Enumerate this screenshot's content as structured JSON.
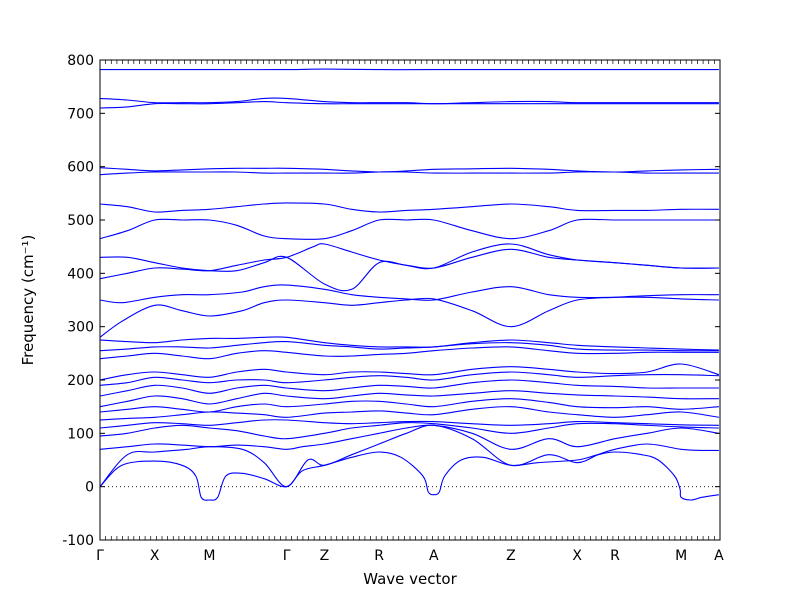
{
  "chart_data": {
    "type": "line",
    "title": "",
    "xlabel": "Wave vector",
    "ylabel": "Frequency (cm⁻¹)",
    "ylim": [
      -100,
      800
    ],
    "yticks": [
      -100,
      0,
      100,
      200,
      300,
      400,
      500,
      600,
      700,
      800
    ],
    "xlim": [
      0,
      11.33
    ],
    "xticks": [
      {
        "label": "Γ",
        "x": 0
      },
      {
        "label": "X",
        "x": 1.0
      },
      {
        "label": "M",
        "x": 2.0
      },
      {
        "label": "Γ",
        "x": 3.41
      },
      {
        "label": "Z",
        "x": 4.1
      },
      {
        "label": "R",
        "x": 5.1
      },
      {
        "label": "A",
        "x": 6.1
      },
      {
        "label": "Z",
        "x": 7.51
      },
      {
        "label": "X",
        "x": 8.72
      },
      {
        "label": "R",
        "x": 9.41
      },
      {
        "label": "M",
        "x": 10.62
      },
      {
        "label": "A",
        "x": 11.31
      }
    ],
    "zero_line": 0,
    "line_color": "#0000ff",
    "series": [
      {
        "x": [
          0,
          0.4,
          1.0,
          1.5,
          1.75,
          1.85,
          2.0,
          2.15,
          2.3,
          2.6,
          3.0,
          3.41,
          3.7,
          4.1,
          4.6,
          5.1,
          5.5,
          5.9,
          6.0,
          6.1,
          6.2,
          6.3,
          6.6,
          7.0,
          7.51,
          8.0,
          8.72,
          9.1,
          9.41,
          9.9,
          10.2,
          10.5,
          10.6,
          10.62,
          10.8,
          11.0,
          11.31
        ],
        "y": [
          0,
          40,
          48,
          40,
          20,
          -20,
          -25,
          -20,
          20,
          25,
          15,
          0,
          30,
          40,
          55,
          65,
          55,
          20,
          -10,
          -15,
          -10,
          20,
          50,
          55,
          40,
          45,
          50,
          60,
          65,
          60,
          50,
          20,
          -5,
          -20,
          -25,
          -20,
          -15
        ]
      },
      {
        "x": [
          0,
          0.5,
          1.0,
          1.6,
          2.0,
          2.6,
          3.0,
          3.41,
          3.8,
          4.1,
          4.6,
          5.1,
          5.6,
          6.1,
          6.8,
          7.51,
          8.2,
          8.72,
          9.1,
          9.41,
          10.0,
          10.62,
          11.0,
          11.31
        ],
        "y": [
          0,
          60,
          65,
          70,
          75,
          70,
          45,
          0,
          50,
          40,
          60,
          80,
          100,
          115,
          90,
          40,
          60,
          45,
          60,
          70,
          80,
          70,
          68,
          68
        ]
      },
      {
        "x": [
          0,
          0.5,
          1.0,
          1.5,
          2.0,
          2.5,
          3.0,
          3.41,
          3.7,
          4.1,
          4.6,
          5.1,
          5.6,
          6.1,
          6.8,
          7.51,
          8.2,
          8.72,
          9.41,
          10.0,
          10.62,
          11.31
        ],
        "y": [
          70,
          75,
          80,
          78,
          75,
          78,
          75,
          70,
          75,
          80,
          90,
          100,
          110,
          115,
          100,
          70,
          90,
          75,
          90,
          100,
          110,
          100
        ]
      },
      {
        "x": [
          0,
          0.5,
          1.0,
          1.5,
          2.0,
          2.5,
          3.0,
          3.41,
          4.1,
          4.6,
          5.1,
          5.6,
          6.1,
          6.8,
          7.51,
          8.2,
          8.72,
          9.41,
          10.0,
          10.62,
          11.31
        ],
        "y": [
          95,
          100,
          110,
          115,
          110,
          105,
          95,
          90,
          100,
          110,
          115,
          120,
          118,
          110,
          100,
          110,
          118,
          118,
          115,
          112,
          110
        ]
      },
      {
        "x": [
          0,
          0.5,
          1.0,
          1.5,
          2.0,
          2.5,
          3.0,
          3.41,
          4.1,
          4.6,
          5.1,
          5.6,
          6.1,
          6.8,
          7.51,
          8.2,
          8.72,
          9.41,
          10.0,
          10.62,
          11.31
        ],
        "y": [
          110,
          115,
          120,
          118,
          115,
          120,
          125,
          125,
          120,
          118,
          120,
          122,
          122,
          118,
          115,
          118,
          122,
          120,
          118,
          116,
          115
        ]
      },
      {
        "x": [
          0,
          0.5,
          1.0,
          1.5,
          2.0,
          2.5,
          3.0,
          3.41,
          4.1,
          4.6,
          5.1,
          5.6,
          6.1,
          6.8,
          7.51,
          8.2,
          8.72,
          9.41,
          10.0,
          10.62,
          11.31
        ],
        "y": [
          125,
          128,
          130,
          135,
          140,
          138,
          135,
          130,
          138,
          140,
          142,
          138,
          135,
          145,
          150,
          140,
          135,
          130,
          135,
          140,
          130
        ]
      },
      {
        "x": [
          0,
          0.5,
          1.0,
          1.5,
          2.0,
          2.5,
          3.0,
          3.41,
          4.1,
          4.6,
          5.1,
          5.6,
          6.1,
          6.8,
          7.51,
          8.2,
          8.72,
          9.41,
          10.0,
          10.62,
          11.31
        ],
        "y": [
          140,
          145,
          150,
          145,
          140,
          150,
          155,
          150,
          155,
          160,
          160,
          155,
          150,
          160,
          165,
          158,
          150,
          148,
          150,
          145,
          150
        ]
      },
      {
        "x": [
          0,
          0.5,
          1.0,
          1.5,
          2.0,
          2.5,
          3.0,
          3.41,
          4.1,
          4.6,
          5.1,
          5.6,
          6.1,
          6.8,
          7.51,
          8.2,
          8.72,
          9.41,
          10.0,
          10.62,
          11.31
        ],
        "y": [
          150,
          160,
          170,
          165,
          155,
          165,
          175,
          170,
          165,
          170,
          175,
          172,
          170,
          175,
          180,
          175,
          172,
          170,
          168,
          165,
          165
        ]
      },
      {
        "x": [
          0,
          0.5,
          1.0,
          1.5,
          2.0,
          2.5,
          3.0,
          3.41,
          4.1,
          4.6,
          5.1,
          5.6,
          6.1,
          6.8,
          7.51,
          8.2,
          8.72,
          9.41,
          10.0,
          10.62,
          11.31
        ],
        "y": [
          170,
          180,
          190,
          185,
          175,
          185,
          190,
          185,
          180,
          185,
          190,
          188,
          185,
          195,
          200,
          195,
          190,
          188,
          185,
          185,
          185
        ]
      },
      {
        "x": [
          0,
          0.5,
          1.0,
          1.5,
          2.0,
          2.5,
          3.0,
          3.41,
          4.1,
          4.6,
          5.1,
          5.6,
          6.1,
          6.8,
          7.51,
          8.2,
          8.72,
          9.41,
          10.0,
          10.62,
          11.31
        ],
        "y": [
          190,
          195,
          205,
          200,
          195,
          200,
          200,
          195,
          200,
          205,
          208,
          205,
          200,
          210,
          215,
          210,
          205,
          208,
          210,
          210,
          208
        ]
      },
      {
        "x": [
          0,
          0.5,
          1.0,
          1.5,
          2.0,
          2.5,
          3.0,
          3.41,
          4.1,
          4.6,
          5.1,
          5.6,
          6.1,
          6.8,
          7.51,
          8.2,
          8.72,
          9.41,
          10.0,
          10.62,
          11.31
        ],
        "y": [
          200,
          210,
          215,
          210,
          205,
          215,
          220,
          215,
          210,
          215,
          215,
          212,
          210,
          220,
          225,
          220,
          215,
          212,
          215,
          230,
          210
        ]
      },
      {
        "x": [
          0,
          0.5,
          1.0,
          1.5,
          2.0,
          2.5,
          3.0,
          3.41,
          4.1,
          4.6,
          5.1,
          5.6,
          6.1,
          6.8,
          7.51,
          8.2,
          8.72,
          9.41,
          10.0,
          10.62,
          11.31
        ],
        "y": [
          240,
          245,
          250,
          245,
          240,
          250,
          255,
          252,
          245,
          245,
          248,
          250,
          255,
          260,
          262,
          255,
          250,
          250,
          252,
          252,
          252
        ]
      },
      {
        "x": [
          0,
          0.5,
          1.0,
          1.5,
          2.0,
          2.5,
          3.0,
          3.41,
          4.1,
          4.6,
          5.1,
          5.6,
          6.1,
          6.8,
          7.51,
          8.2,
          8.72,
          9.41,
          10.0,
          10.62,
          11.31
        ],
        "y": [
          255,
          258,
          262,
          262,
          260,
          265,
          270,
          272,
          265,
          262,
          258,
          260,
          262,
          268,
          270,
          265,
          258,
          256,
          256,
          255,
          255
        ]
      },
      {
        "x": [
          0,
          0.5,
          1.0,
          1.5,
          2.0,
          2.5,
          3.0,
          3.41,
          4.1,
          4.6,
          5.1,
          5.6,
          6.1,
          6.8,
          7.51,
          8.2,
          8.72,
          9.41,
          10.0,
          10.62,
          11.31
        ],
        "y": [
          275,
          272,
          270,
          275,
          278,
          278,
          280,
          280,
          270,
          265,
          262,
          262,
          262,
          270,
          275,
          270,
          265,
          262,
          260,
          258,
          256
        ]
      },
      {
        "x": [
          0,
          0.4,
          1.0,
          1.5,
          2.0,
          2.6,
          3.0,
          3.41,
          4.1,
          4.6,
          5.1,
          5.6,
          6.1,
          6.8,
          7.51,
          8.2,
          8.72,
          9.41,
          10.0,
          10.62,
          11.31
        ],
        "y": [
          280,
          310,
          340,
          330,
          320,
          330,
          345,
          350,
          345,
          340,
          345,
          350,
          352,
          330,
          300,
          330,
          350,
          355,
          358,
          360,
          360
        ]
      },
      {
        "x": [
          0,
          0.4,
          1.0,
          1.5,
          2.0,
          2.6,
          3.0,
          3.41,
          4.1,
          4.6,
          5.1,
          5.6,
          6.1,
          6.8,
          7.51,
          8.2,
          8.72,
          9.41,
          10.0,
          10.62,
          11.31
        ],
        "y": [
          350,
          345,
          355,
          360,
          360,
          365,
          375,
          378,
          370,
          360,
          355,
          352,
          350,
          365,
          375,
          360,
          355,
          355,
          355,
          352,
          350
        ]
      },
      {
        "x": [
          0,
          0.5,
          1.0,
          1.5,
          2.0,
          2.5,
          3.0,
          3.41,
          3.9,
          4.1,
          4.6,
          5.1,
          5.6,
          6.1,
          6.8,
          7.51,
          8.2,
          8.72,
          9.41,
          10.0,
          10.62,
          11.31
        ],
        "y": [
          390,
          400,
          410,
          408,
          405,
          415,
          425,
          430,
          450,
          455,
          440,
          425,
          415,
          410,
          440,
          455,
          435,
          425,
          420,
          415,
          410,
          410
        ]
      },
      {
        "x": [
          0,
          0.5,
          1.0,
          1.5,
          2.0,
          2.5,
          3.0,
          3.41,
          4.1,
          4.6,
          5.1,
          5.6,
          6.1,
          6.8,
          7.51,
          8.2,
          8.72,
          9.41,
          10.0,
          10.62,
          11.31
        ],
        "y": [
          430,
          430,
          420,
          410,
          405,
          405,
          420,
          430,
          380,
          370,
          420,
          415,
          410,
          430,
          445,
          430,
          425,
          420,
          415,
          410,
          410
        ]
      },
      {
        "x": [
          0,
          0.5,
          1.0,
          1.5,
          2.0,
          2.5,
          3.0,
          3.41,
          4.1,
          4.6,
          5.1,
          5.6,
          6.1,
          6.8,
          7.51,
          8.2,
          8.72,
          9.41,
          10.0,
          10.62,
          11.31
        ],
        "y": [
          465,
          480,
          500,
          500,
          500,
          490,
          470,
          465,
          465,
          480,
          500,
          500,
          500,
          480,
          465,
          480,
          500,
          500,
          500,
          500,
          500
        ]
      },
      {
        "x": [
          0,
          0.5,
          1.0,
          1.5,
          2.0,
          2.5,
          3.0,
          3.41,
          4.1,
          4.6,
          5.1,
          5.6,
          6.1,
          6.8,
          7.51,
          8.2,
          8.72,
          9.41,
          10.0,
          10.62,
          11.31
        ],
        "y": [
          530,
          525,
          515,
          518,
          520,
          525,
          530,
          532,
          530,
          520,
          515,
          518,
          520,
          525,
          530,
          525,
          518,
          518,
          518,
          520,
          520
        ]
      },
      {
        "x": [
          0,
          0.5,
          1.0,
          1.5,
          2.0,
          2.5,
          3.0,
          3.41,
          4.1,
          4.6,
          5.1,
          5.6,
          6.1,
          6.8,
          7.51,
          8.2,
          8.72,
          9.41,
          10.0,
          10.62,
          11.31
        ],
        "y": [
          585,
          588,
          590,
          590,
          590,
          590,
          588,
          588,
          588,
          588,
          590,
          590,
          588,
          588,
          588,
          588,
          590,
          590,
          588,
          588,
          588
        ]
      },
      {
        "x": [
          0,
          0.5,
          1.0,
          1.5,
          2.0,
          2.5,
          3.0,
          3.41,
          4.1,
          4.6,
          5.1,
          5.6,
          6.1,
          6.8,
          7.51,
          8.2,
          8.72,
          9.41,
          10.0,
          10.62,
          11.31
        ],
        "y": [
          598,
          595,
          592,
          594,
          596,
          597,
          597,
          597,
          595,
          592,
          590,
          592,
          595,
          596,
          597,
          595,
          592,
          590,
          592,
          594,
          595
        ]
      },
      {
        "x": [
          0,
          0.5,
          1.0,
          1.5,
          2.0,
          2.5,
          3.0,
          3.41,
          4.1,
          4.6,
          5.1,
          5.6,
          6.1,
          6.8,
          7.51,
          8.2,
          8.72,
          9.41,
          10.0,
          10.62,
          11.31
        ],
        "y": [
          710,
          712,
          718,
          718,
          718,
          720,
          722,
          720,
          718,
          718,
          718,
          718,
          718,
          718,
          718,
          718,
          718,
          718,
          718,
          718,
          718
        ]
      },
      {
        "x": [
          0,
          0.5,
          1.0,
          1.5,
          2.0,
          2.5,
          3.0,
          3.41,
          4.1,
          4.6,
          5.1,
          5.6,
          6.1,
          6.8,
          7.51,
          8.2,
          8.72,
          9.41,
          10.0,
          10.62,
          11.31
        ],
        "y": [
          728,
          725,
          720,
          720,
          720,
          722,
          728,
          728,
          722,
          720,
          720,
          720,
          718,
          720,
          722,
          722,
          720,
          720,
          720,
          720,
          720
        ]
      },
      {
        "x": [
          0,
          1.0,
          2.0,
          3.41,
          4.1,
          5.1,
          6.1,
          7.51,
          8.72,
          9.41,
          10.62,
          11.31
        ],
        "y": [
          782,
          782,
          782,
          782,
          783,
          782,
          782,
          782,
          782,
          782,
          782,
          782
        ]
      }
    ]
  }
}
